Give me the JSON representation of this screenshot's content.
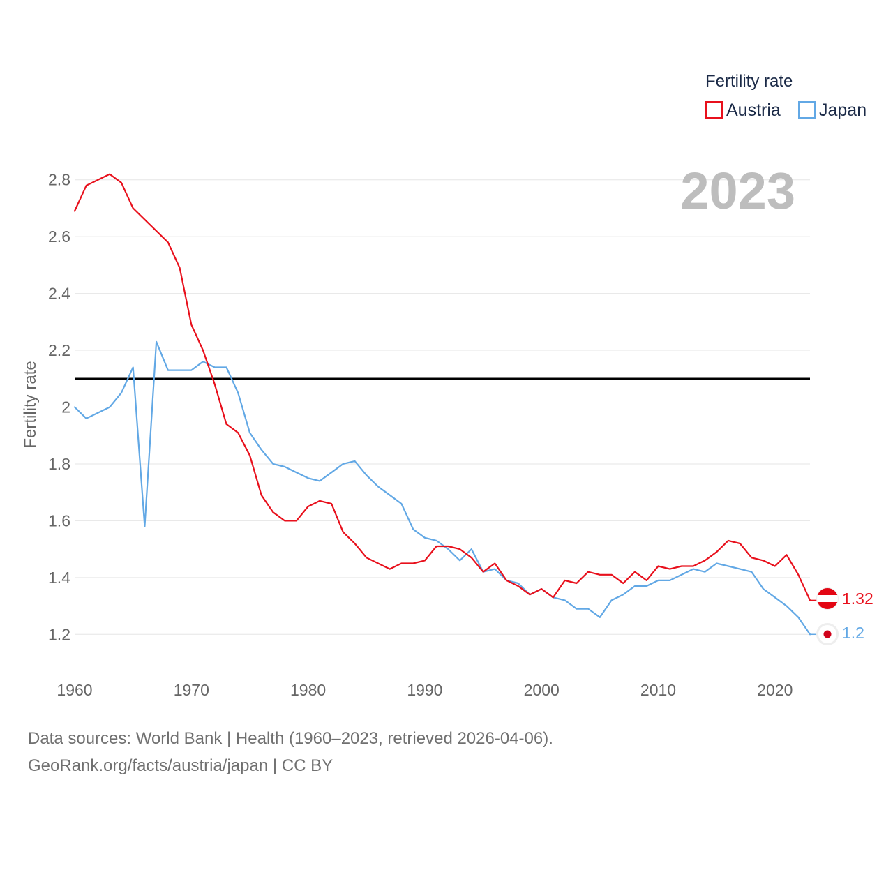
{
  "chart_data": {
    "type": "line",
    "title": "Fertility rate",
    "ylabel": "Fertility rate",
    "xlabel": "",
    "year_display": "2023",
    "xlim": [
      1960,
      2023
    ],
    "ylim": [
      1.1,
      2.9
    ],
    "x_ticks": [
      1960,
      1970,
      1980,
      1990,
      2000,
      2010,
      2020
    ],
    "y_ticks": [
      1.2,
      1.4,
      1.6,
      1.8,
      2,
      2.2,
      2.4,
      2.6,
      2.8
    ],
    "y_tick_labels": [
      "1.2",
      "1.4",
      "1.6",
      "1.8",
      "2",
      "2.2",
      "2.4",
      "2.6",
      "2.8"
    ],
    "reference_line": 2.1,
    "grid": true,
    "legend_position": "top-right",
    "x": [
      1960,
      1961,
      1962,
      1963,
      1964,
      1965,
      1966,
      1967,
      1968,
      1969,
      1970,
      1971,
      1972,
      1973,
      1974,
      1975,
      1976,
      1977,
      1978,
      1979,
      1980,
      1981,
      1982,
      1983,
      1984,
      1985,
      1986,
      1987,
      1988,
      1989,
      1990,
      1991,
      1992,
      1993,
      1994,
      1995,
      1996,
      1997,
      1998,
      1999,
      2000,
      2001,
      2002,
      2003,
      2004,
      2005,
      2006,
      2007,
      2008,
      2009,
      2010,
      2011,
      2012,
      2013,
      2014,
      2015,
      2016,
      2017,
      2018,
      2019,
      2020,
      2021,
      2022,
      2023
    ],
    "series": [
      {
        "name": "Austria",
        "color": "#e8101c",
        "end_label": "1.32",
        "values": [
          2.69,
          2.78,
          2.8,
          2.82,
          2.79,
          2.7,
          2.66,
          2.62,
          2.58,
          2.49,
          2.29,
          2.2,
          2.08,
          1.94,
          1.91,
          1.83,
          1.69,
          1.63,
          1.6,
          1.6,
          1.65,
          1.67,
          1.66,
          1.56,
          1.52,
          1.47,
          1.45,
          1.43,
          1.45,
          1.45,
          1.46,
          1.51,
          1.51,
          1.5,
          1.47,
          1.42,
          1.45,
          1.39,
          1.37,
          1.34,
          1.36,
          1.33,
          1.39,
          1.38,
          1.42,
          1.41,
          1.41,
          1.38,
          1.42,
          1.39,
          1.44,
          1.43,
          1.44,
          1.44,
          1.46,
          1.49,
          1.53,
          1.52,
          1.47,
          1.46,
          1.44,
          1.48,
          1.41,
          1.32
        ]
      },
      {
        "name": "Japan",
        "color": "#62a8e5",
        "end_label": "1.2",
        "values": [
          2.0,
          1.96,
          1.98,
          2.0,
          2.05,
          2.14,
          1.58,
          2.23,
          2.13,
          2.13,
          2.13,
          2.16,
          2.14,
          2.14,
          2.05,
          1.91,
          1.85,
          1.8,
          1.79,
          1.77,
          1.75,
          1.74,
          1.77,
          1.8,
          1.81,
          1.76,
          1.72,
          1.69,
          1.66,
          1.57,
          1.54,
          1.53,
          1.5,
          1.46,
          1.5,
          1.42,
          1.43,
          1.39,
          1.38,
          1.34,
          1.36,
          1.33,
          1.32,
          1.29,
          1.29,
          1.26,
          1.32,
          1.34,
          1.37,
          1.37,
          1.39,
          1.39,
          1.41,
          1.43,
          1.42,
          1.45,
          1.44,
          1.43,
          1.42,
          1.36,
          1.33,
          1.3,
          1.26,
          1.2
        ]
      }
    ]
  },
  "footer": {
    "line1": "Data sources: World Bank | Health (1960–2023, retrieved 2026-04-06).",
    "line2": "GeoRank.org/facts/austria/japan | CC BY"
  }
}
